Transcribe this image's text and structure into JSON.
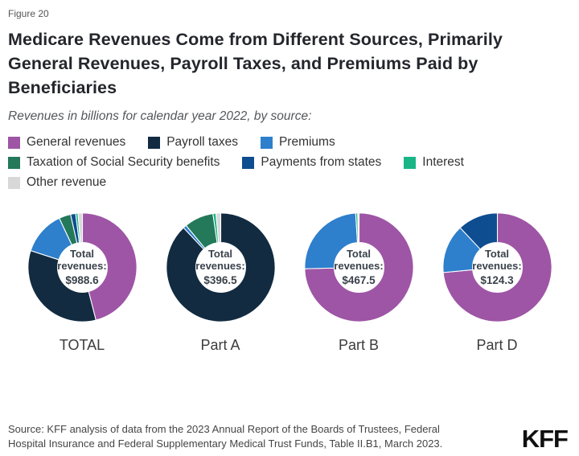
{
  "figure_label": "Figure 20",
  "title": "Medicare Revenues Come from Different Sources, Primarily General Revenues, Payroll Taxes, and Premiums Paid by Beneficiaries",
  "subtitle": "Revenues in billions for calendar year 2022, by source:",
  "legend": {
    "items": [
      {
        "label": "General revenues",
        "color": "#9E55A5"
      },
      {
        "label": "Payroll taxes",
        "color": "#122B40"
      },
      {
        "label": "Premiums",
        "color": "#2E7FCC"
      },
      {
        "label": "Taxation of Social Security benefits",
        "color": "#23795A"
      },
      {
        "label": "Payments from states",
        "color": "#0E4D8F"
      },
      {
        "label": "Interest",
        "color": "#19B587"
      },
      {
        "label": "Other revenue",
        "color": "#D8D8D8"
      }
    ]
  },
  "chart_data": [
    {
      "type": "pie",
      "subtype": "donut",
      "label": "TOTAL",
      "center": {
        "line1": "Total",
        "line2": "revenues:",
        "value": "$988.6"
      },
      "total_billions": 988.6,
      "units": "billions USD",
      "series": [
        {
          "name": "General revenues",
          "color": "#9E55A5",
          "pct": 46.0
        },
        {
          "name": "Payroll taxes",
          "color": "#122B40",
          "pct": 34.0
        },
        {
          "name": "Premiums",
          "color": "#2E7FCC",
          "pct": 13.0
        },
        {
          "name": "Taxation of Social Security benefits",
          "color": "#23795A",
          "pct": 3.5
        },
        {
          "name": "Payments from states",
          "color": "#0E4D8F",
          "pct": 1.5
        },
        {
          "name": "Interest",
          "color": "#19B587",
          "pct": 0.7
        },
        {
          "name": "Other revenue",
          "color": "#D8D8D8",
          "pct": 1.3
        }
      ]
    },
    {
      "type": "pie",
      "subtype": "donut",
      "label": "Part A",
      "center": {
        "line1": "Total",
        "line2": "revenues:",
        "value": "$396.5"
      },
      "total_billions": 396.5,
      "units": "billions USD",
      "series": [
        {
          "name": "Payroll taxes",
          "color": "#122B40",
          "pct": 88.0
        },
        {
          "name": "Premiums",
          "color": "#2E7FCC",
          "pct": 1.0
        },
        {
          "name": "Taxation of Social Security benefits",
          "color": "#23795A",
          "pct": 8.7
        },
        {
          "name": "Interest",
          "color": "#19B587",
          "pct": 0.9
        },
        {
          "name": "Other revenue",
          "color": "#D8D8D8",
          "pct": 1.4
        }
      ]
    },
    {
      "type": "pie",
      "subtype": "donut",
      "label": "Part B",
      "center": {
        "line1": "Total",
        "line2": "revenues:",
        "value": "$467.5"
      },
      "total_billions": 467.5,
      "units": "billions USD",
      "series": [
        {
          "name": "General revenues",
          "color": "#9E55A5",
          "pct": 74.6
        },
        {
          "name": "Premiums",
          "color": "#2E7FCC",
          "pct": 24.4
        },
        {
          "name": "Interest",
          "color": "#19B587",
          "pct": 0.6
        },
        {
          "name": "Other revenue",
          "color": "#D8D8D8",
          "pct": 0.4
        }
      ]
    },
    {
      "type": "pie",
      "subtype": "donut",
      "label": "Part D",
      "center": {
        "line1": "Total",
        "line2": "revenues:",
        "value": "$124.3"
      },
      "total_billions": 124.3,
      "units": "billions USD",
      "series": [
        {
          "name": "General revenues",
          "color": "#9E55A5",
          "pct": 73.5
        },
        {
          "name": "Premiums",
          "color": "#2E7FCC",
          "pct": 14.5
        },
        {
          "name": "Payments from states",
          "color": "#0E4D8F",
          "pct": 12.0
        }
      ]
    }
  ],
  "source": {
    "line1": "Source: KFF analysis of data from the 2023 Annual Report of the Boards of Trustees, Federal",
    "line2": "Hospital Insurance and Federal Supplementary Medical Trust Funds, Table II.B1, March 2023."
  },
  "logo": "KFF"
}
